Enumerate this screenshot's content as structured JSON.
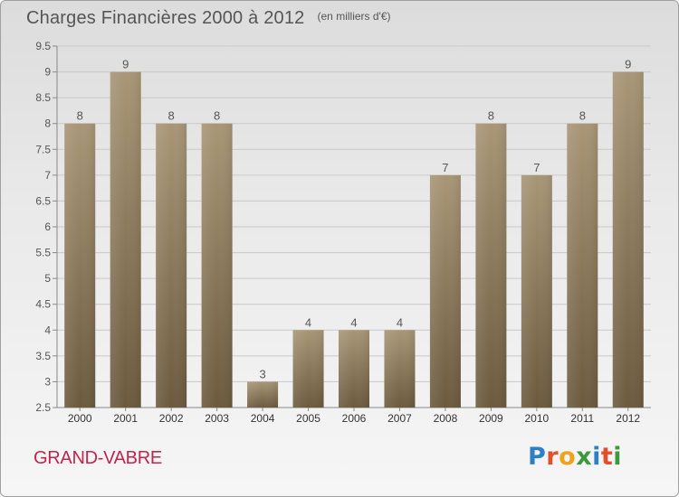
{
  "header": {
    "title": "Charges Financières 2000 à 2012",
    "unit": "(en milliers d'€)"
  },
  "footer": {
    "place": "GRAND-VABRE",
    "logo": "Proxiti"
  },
  "colors": {
    "bar_top": "#a89676",
    "bar_bottom": "#6b5a3e",
    "place": "#c0254e",
    "axis_text": "#555555",
    "logo_letters": [
      "#2e7fc9",
      "#e2502b",
      "#f0a21c",
      "#3b9a3b",
      "#2e7fc9",
      "#e2502b",
      "#3b9a3b"
    ]
  },
  "chart_data": {
    "type": "bar",
    "title": "Charges Financières 2000 à 2012",
    "subtitle": "(en milliers d'€)",
    "categories": [
      "2000",
      "2001",
      "2002",
      "2003",
      "2004",
      "2005",
      "2006",
      "2007",
      "2008",
      "2009",
      "2010",
      "2011",
      "2012"
    ],
    "values": [
      8,
      9,
      8,
      8,
      3,
      4,
      4,
      4,
      7,
      8,
      7,
      8,
      9
    ],
    "ylim": [
      2.5,
      9.5
    ],
    "yticks": [
      "2.5",
      "3",
      "3.5",
      "4",
      "4.5",
      "5",
      "5.5",
      "6",
      "6.5",
      "7",
      "7.5",
      "8",
      "8.5",
      "9",
      "9.5"
    ],
    "grid": true,
    "data_labels": true
  }
}
